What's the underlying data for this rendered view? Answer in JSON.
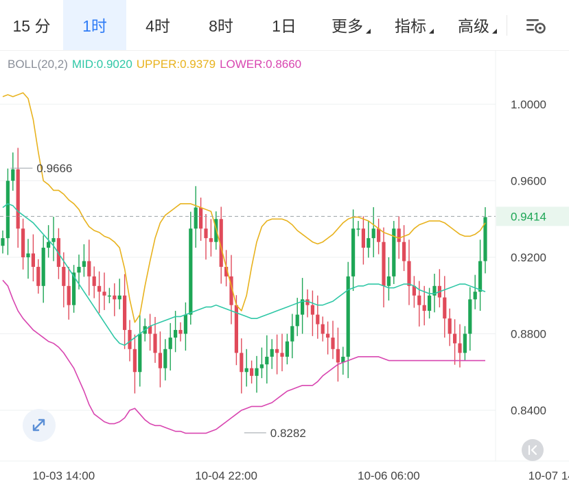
{
  "toolbar": {
    "tabs": [
      {
        "label": "15 分",
        "active": false
      },
      {
        "label": "1时",
        "active": true
      },
      {
        "label": "4时",
        "active": false
      },
      {
        "label": "8时",
        "active": false
      },
      {
        "label": "1日",
        "active": false
      },
      {
        "label": "更多",
        "active": false,
        "dropdown": true
      },
      {
        "label": "指标",
        "active": false,
        "dropdown": true
      },
      {
        "label": "高级",
        "active": false,
        "dropdown": true
      }
    ],
    "settings_icon": "chart-settings-icon"
  },
  "indicator": {
    "name": "BOLL(20,2)",
    "mid": "MID:0.9020",
    "upper": "UPPER:0.9379",
    "lower": "LOWER:0.8660",
    "colors": {
      "name": "#8a8f99",
      "mid": "#2ec7a6",
      "upper": "#e8b21d",
      "lower": "#d845b0"
    }
  },
  "chart_data": {
    "type": "candlestick",
    "y_ticks": [
      "1.0000",
      "0.9600",
      "0.9200",
      "0.8800",
      "0.8400"
    ],
    "y_tick_values": [
      1.0,
      0.96,
      0.92,
      0.88,
      0.84
    ],
    "ylim": [
      0.82,
      1.018
    ],
    "x_ticks": [
      "10-03 14:00",
      "10-04 22:00",
      "10-06 06:00",
      "10-07 14"
    ],
    "x_tick_index": [
      12,
      44,
      76,
      108
    ],
    "visible_bars": 96,
    "current_price": "0.9414",
    "current_price_value": 0.9414,
    "annotations": [
      {
        "label": "0.9666",
        "value": 0.9666,
        "index": 1
      },
      {
        "label": "0.8282",
        "value": 0.8282,
        "index": 47
      }
    ],
    "colors": {
      "up": "#1ea656",
      "down": "#e04a5a",
      "mid": "#2ec7a6",
      "upper": "#e8b21d",
      "lower": "#d845b0",
      "price": "#1ea656"
    },
    "closes": [
      0.93,
      0.96,
      0.966,
      0.935,
      0.92,
      0.922,
      0.915,
      0.905,
      0.925,
      0.928,
      0.93,
      0.915,
      0.905,
      0.895,
      0.912,
      0.915,
      0.918,
      0.91,
      0.905,
      0.902,
      0.9,
      0.9,
      0.898,
      0.9,
      0.882,
      0.872,
      0.86,
      0.88,
      0.884,
      0.88,
      0.87,
      0.862,
      0.872,
      0.878,
      0.882,
      0.88,
      0.89,
      0.935,
      0.946,
      0.935,
      0.93,
      0.928,
      0.94,
      0.915,
      0.91,
      0.895,
      0.87,
      0.86,
      0.862,
      0.858,
      0.862,
      0.864,
      0.868,
      0.872,
      0.87,
      0.868,
      0.876,
      0.884,
      0.89,
      0.898,
      0.895,
      0.89,
      0.885,
      0.88,
      0.878,
      0.872,
      0.865,
      0.868,
      0.91,
      0.935,
      0.935,
      0.925,
      0.93,
      0.935,
      0.928,
      0.905,
      0.91,
      0.935,
      0.928,
      0.918,
      0.905,
      0.9,
      0.895,
      0.892,
      0.9,
      0.905,
      0.899,
      0.888,
      0.88,
      0.875,
      0.87,
      0.88,
      0.898,
      0.902,
      0.918,
      0.941
    ],
    "series": [
      {
        "name": "MID",
        "values": [
          0.946,
          0.948,
          0.947,
          0.944,
          0.942,
          0.94,
          0.938,
          0.935,
          0.932,
          0.929,
          0.926,
          0.922,
          0.918,
          0.914,
          0.91,
          0.906,
          0.902,
          0.898,
          0.894,
          0.89,
          0.886,
          0.882,
          0.878,
          0.875,
          0.874,
          0.876,
          0.878,
          0.88,
          0.882,
          0.884,
          0.885,
          0.886,
          0.887,
          0.888,
          0.889,
          0.889,
          0.89,
          0.891,
          0.892,
          0.893,
          0.894,
          0.894,
          0.895,
          0.894,
          0.893,
          0.892,
          0.891,
          0.89,
          0.889,
          0.888,
          0.888,
          0.889,
          0.89,
          0.891,
          0.892,
          0.893,
          0.894,
          0.895,
          0.896,
          0.897,
          0.897,
          0.896,
          0.895,
          0.895,
          0.896,
          0.897,
          0.899,
          0.901,
          0.903,
          0.904,
          0.905,
          0.905,
          0.906,
          0.906,
          0.906,
          0.905,
          0.904,
          0.904,
          0.905,
          0.906,
          0.906,
          0.905,
          0.903,
          0.902,
          0.901,
          0.901,
          0.902,
          0.903,
          0.904,
          0.905,
          0.906,
          0.906,
          0.905,
          0.904,
          0.903,
          0.902
        ]
      },
      {
        "name": "UPPER",
        "values": [
          1.004,
          1.005,
          1.004,
          1.005,
          1.006,
          1.003,
          0.992,
          0.975,
          0.96,
          0.958,
          0.955,
          0.955,
          0.953,
          0.95,
          0.948,
          0.945,
          0.94,
          0.936,
          0.934,
          0.933,
          0.931,
          0.93,
          0.928,
          0.925,
          0.914,
          0.898,
          0.886,
          0.89,
          0.905,
          0.918,
          0.93,
          0.938,
          0.942,
          0.944,
          0.946,
          0.948,
          0.948,
          0.948,
          0.947,
          0.946,
          0.945,
          0.944,
          0.935,
          0.925,
          0.915,
          0.905,
          0.895,
          0.892,
          0.9,
          0.915,
          0.928,
          0.936,
          0.939,
          0.94,
          0.94,
          0.94,
          0.939,
          0.937,
          0.934,
          0.932,
          0.93,
          0.928,
          0.927,
          0.928,
          0.93,
          0.932,
          0.935,
          0.938,
          0.94,
          0.941,
          0.941,
          0.94,
          0.939,
          0.937,
          0.935,
          0.933,
          0.932,
          0.931,
          0.93,
          0.931,
          0.932,
          0.935,
          0.937,
          0.938,
          0.939,
          0.939,
          0.939,
          0.938,
          0.936,
          0.934,
          0.932,
          0.931,
          0.931,
          0.932,
          0.934,
          0.938
        ]
      },
      {
        "name": "LOWER",
        "values": [
          0.908,
          0.905,
          0.898,
          0.892,
          0.888,
          0.885,
          0.882,
          0.88,
          0.878,
          0.876,
          0.875,
          0.873,
          0.87,
          0.866,
          0.862,
          0.856,
          0.85,
          0.843,
          0.838,
          0.836,
          0.834,
          0.833,
          0.833,
          0.834,
          0.836,
          0.84,
          0.841,
          0.838,
          0.835,
          0.833,
          0.832,
          0.832,
          0.831,
          0.83,
          0.829,
          0.829,
          0.828,
          0.828,
          0.828,
          0.828,
          0.828,
          0.829,
          0.83,
          0.832,
          0.834,
          0.836,
          0.838,
          0.84,
          0.841,
          0.842,
          0.842,
          0.842,
          0.843,
          0.844,
          0.846,
          0.848,
          0.85,
          0.851,
          0.852,
          0.853,
          0.853,
          0.853,
          0.855,
          0.858,
          0.86,
          0.862,
          0.864,
          0.865,
          0.866,
          0.867,
          0.868,
          0.868,
          0.868,
          0.868,
          0.868,
          0.867,
          0.866,
          0.866,
          0.866,
          0.866,
          0.866,
          0.866,
          0.866,
          0.866,
          0.866,
          0.866,
          0.866,
          0.866,
          0.866,
          0.866,
          0.866,
          0.866,
          0.866,
          0.866,
          0.866,
          0.866
        ]
      }
    ]
  }
}
